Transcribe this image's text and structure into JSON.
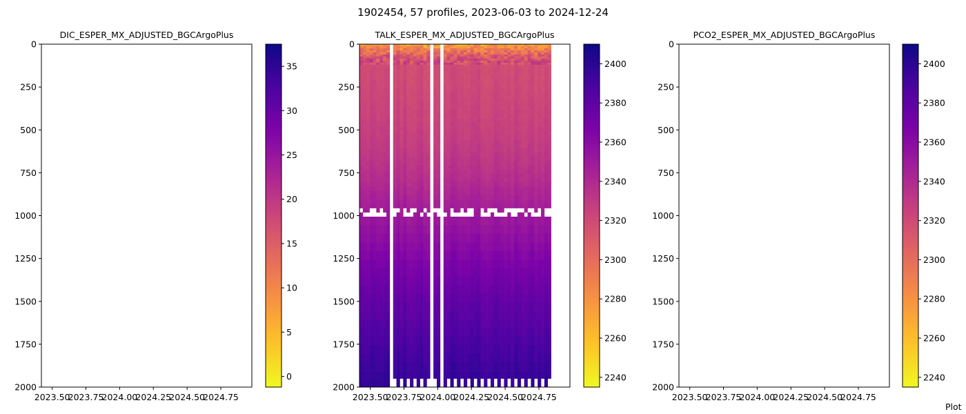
{
  "figure": {
    "title": "1902454, 57 profiles, 2023-06-03 to 2024-12-24",
    "footer_text": "Plot"
  },
  "chart_data": [
    {
      "type": "heatmap",
      "title": "DIC_ESPER_MX_ADJUSTED_BGCArgoPlus",
      "xlabel": "",
      "ylabel": "",
      "x_ticks": [
        "2023.50",
        "2023.75",
        "2024.00",
        "2024.25",
        "2024.50",
        "2024.75"
      ],
      "x_tick_values": [
        2023.5,
        2023.75,
        2024.0,
        2024.25,
        2024.5,
        2024.75
      ],
      "xlim": [
        2023.42,
        2024.98
      ],
      "y_ticks": [
        "0",
        "250",
        "500",
        "750",
        "1000",
        "1250",
        "1500",
        "1750",
        "2000"
      ],
      "y_tick_values": [
        0,
        250,
        500,
        750,
        1000,
        1250,
        1500,
        1750,
        2000
      ],
      "ylim": [
        2000,
        0
      ],
      "y_inverted": true,
      "has_data": false,
      "colormap": "plasma_r",
      "colorbar": {
        "ticks": [
          "0",
          "5",
          "10",
          "15",
          "20",
          "25",
          "30",
          "35"
        ],
        "tick_values": [
          0,
          5,
          10,
          15,
          20,
          25,
          30,
          35
        ],
        "range": [
          -1.2,
          37.5
        ]
      }
    },
    {
      "type": "heatmap",
      "title": "TALK_ESPER_MX_ADJUSTED_BGCArgoPlus",
      "xlabel": "",
      "ylabel": "",
      "x_ticks": [
        "2023.50",
        "2023.75",
        "2024.00",
        "2024.25",
        "2024.50",
        "2024.75"
      ],
      "x_tick_values": [
        2023.5,
        2023.75,
        2024.0,
        2024.25,
        2024.5,
        2024.75
      ],
      "xlim": [
        2023.42,
        2024.98
      ],
      "y_ticks": [
        "0",
        "250",
        "500",
        "750",
        "1000",
        "1250",
        "1500",
        "1750",
        "2000"
      ],
      "y_tick_values": [
        0,
        250,
        500,
        750,
        1000,
        1250,
        1500,
        1750,
        2000
      ],
      "ylim": [
        2000,
        0
      ],
      "y_inverted": true,
      "has_data": true,
      "colormap": "plasma_r",
      "colorbar": {
        "ticks": [
          "2240",
          "2260",
          "2280",
          "2300",
          "2320",
          "2340",
          "2360",
          "2380",
          "2400"
        ],
        "tick_values": [
          2240,
          2260,
          2280,
          2300,
          2320,
          2340,
          2360,
          2380,
          2400
        ],
        "range": [
          2235,
          2410
        ]
      },
      "time_range": [
        2023.42,
        2024.84
      ],
      "num_profiles": 57,
      "depth_levels": [
        0,
        25,
        50,
        75,
        100,
        150,
        200,
        300,
        400,
        500,
        600,
        700,
        800,
        900,
        1000,
        1100,
        1200,
        1300,
        1400,
        1500,
        1600,
        1700,
        1800,
        1900,
        2000
      ],
      "mean_profile_values": [
        2272,
        2288,
        2300,
        2312,
        2318,
        2320,
        2320,
        2322,
        2324,
        2326,
        2329,
        2333,
        2338,
        2344,
        2350,
        2356,
        2362,
        2368,
        2373,
        2378,
        2382,
        2386,
        2390,
        2394,
        2396
      ],
      "missing_columns_x": [
        2023.66,
        2023.96,
        2024.04
      ],
      "missing_depth_band": [
        965,
        1000
      ],
      "bottom_gap_depth": 1950
    },
    {
      "type": "heatmap",
      "title": "PCO2_ESPER_MX_ADJUSTED_BGCArgoPlus",
      "xlabel": "",
      "ylabel": "",
      "x_ticks": [
        "2023.50",
        "2023.75",
        "2024.00",
        "2024.25",
        "2024.50",
        "2024.75"
      ],
      "x_tick_values": [
        2023.5,
        2023.75,
        2024.0,
        2024.25,
        2024.5,
        2024.75
      ],
      "xlim": [
        2023.42,
        2024.98
      ],
      "y_ticks": [
        "0",
        "250",
        "500",
        "750",
        "1000",
        "1250",
        "1500",
        "1750",
        "2000"
      ],
      "y_tick_values": [
        0,
        250,
        500,
        750,
        1000,
        1250,
        1500,
        1750,
        2000
      ],
      "ylim": [
        2000,
        0
      ],
      "y_inverted": true,
      "has_data": false,
      "colormap": "plasma_r",
      "colorbar": {
        "ticks": [
          "2240",
          "2260",
          "2280",
          "2300",
          "2320",
          "2340",
          "2360",
          "2380",
          "2400"
        ],
        "tick_values": [
          2240,
          2260,
          2280,
          2300,
          2320,
          2340,
          2360,
          2380,
          2400
        ],
        "range": [
          2235,
          2410
        ]
      }
    }
  ]
}
